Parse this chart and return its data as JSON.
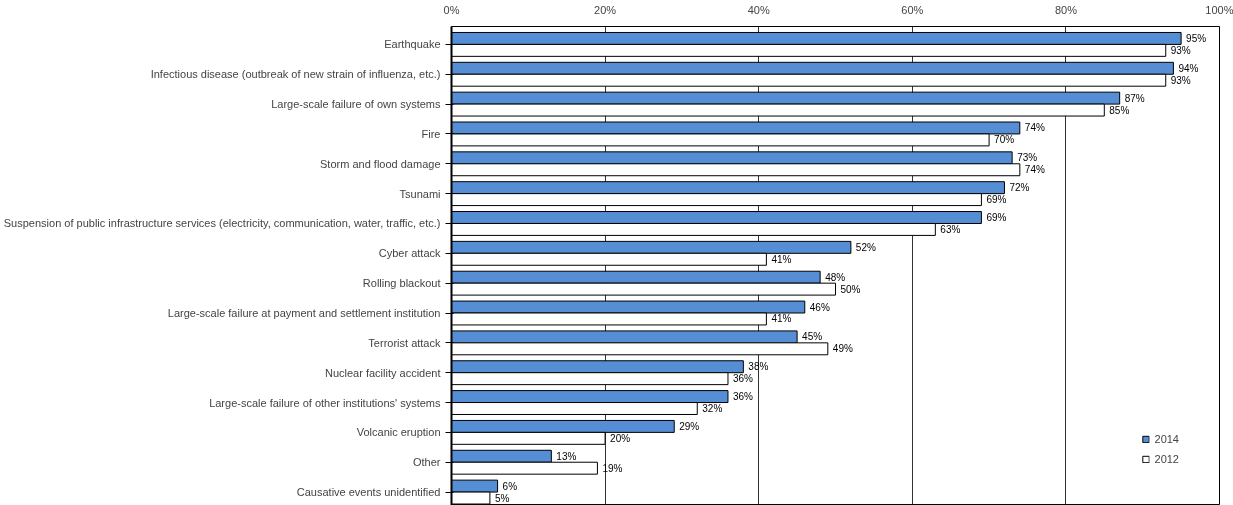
{
  "chart_data": {
    "type": "bar",
    "orientation": "horizontal",
    "categories": [
      "Earthquake",
      "Infectious disease (outbreak of new strain of influenza, etc.)",
      "Large-scale failure of own systems",
      "Fire",
      "Storm and flood damage",
      "Tsunami",
      "Suspension of public infrastructure services (electricity, communication, water, traffic, etc.)",
      "Cyber attack",
      "Rolling blackout",
      "Large-scale failure at payment and settlement institution",
      "Terrorist attack",
      "Nuclear facility accident",
      "Large-scale failure of other institutions' systems",
      "Volcanic eruption",
      "Other",
      "Causative events unidentified"
    ],
    "series": [
      {
        "name": "2014",
        "color": "#558ed5",
        "values": [
          95,
          94,
          87,
          74,
          73,
          72,
          69,
          52,
          48,
          46,
          45,
          38,
          36,
          29,
          13,
          6
        ],
        "value_labels": [
          "95%",
          "94%",
          "87%",
          "74%",
          "73%",
          "72%",
          "69%",
          "52%",
          "48%",
          "46%",
          "45%",
          "38%",
          "36%",
          "29%",
          "13%",
          "6%"
        ]
      },
      {
        "name": "2012",
        "color": "#ffffff",
        "values": [
          93,
          93,
          85,
          70,
          74,
          69,
          63,
          41,
          50,
          41,
          49,
          36,
          32,
          20,
          19,
          5
        ],
        "value_labels": [
          "93%",
          "93%",
          "85%",
          "70%",
          "74%",
          "69%",
          "63%",
          "41%",
          "50%",
          "41%",
          "49%",
          "36%",
          "32%",
          "20%",
          "19%",
          "5%"
        ]
      }
    ],
    "xlim": [
      0,
      100
    ],
    "xticks": [
      {
        "value": 0,
        "label": "0%"
      },
      {
        "value": 20,
        "label": "20%"
      },
      {
        "value": 40,
        "label": "40%"
      },
      {
        "value": 60,
        "label": "60%"
      },
      {
        "value": 80,
        "label": "80%"
      },
      {
        "value": 100,
        "label": "100%"
      }
    ],
    "grid": "x",
    "legend": "bottom right"
  }
}
